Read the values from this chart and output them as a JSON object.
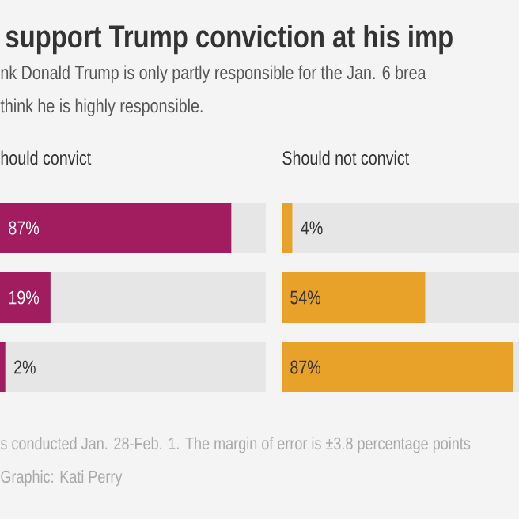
{
  "chart_data": [
    {
      "type": "other",
      "title": "support Trump conviction at his imp",
      "subtitle": [
        "nk Donald Trump is only partly responsible for the Jan. 6 brea",
        "think he is highly responsible."
      ],
      "annotations": [
        "s conducted Jan. 28-Feb. 1. The margin of error is ±3.8 percentage points",
        "Graphic: Kati Perry"
      ]
    },
    {
      "type": "bar",
      "orientation": "horizontal",
      "title": "hould convict",
      "categories": [
        null,
        null,
        null
      ],
      "values": [
        87,
        19,
        2
      ],
      "value_labels": [
        "87%",
        "19%",
        "2%"
      ],
      "color": "#a21d5f",
      "xlim": [
        0,
        100
      ]
    },
    {
      "type": "bar",
      "orientation": "horizontal",
      "title": "Should not convict",
      "categories": [
        null,
        null,
        null
      ],
      "values": [
        4,
        54,
        87
      ],
      "value_labels": [
        "4%",
        "54%",
        "87%"
      ],
      "color": "#e8a22a",
      "xlim": [
        0,
        100
      ]
    }
  ]
}
